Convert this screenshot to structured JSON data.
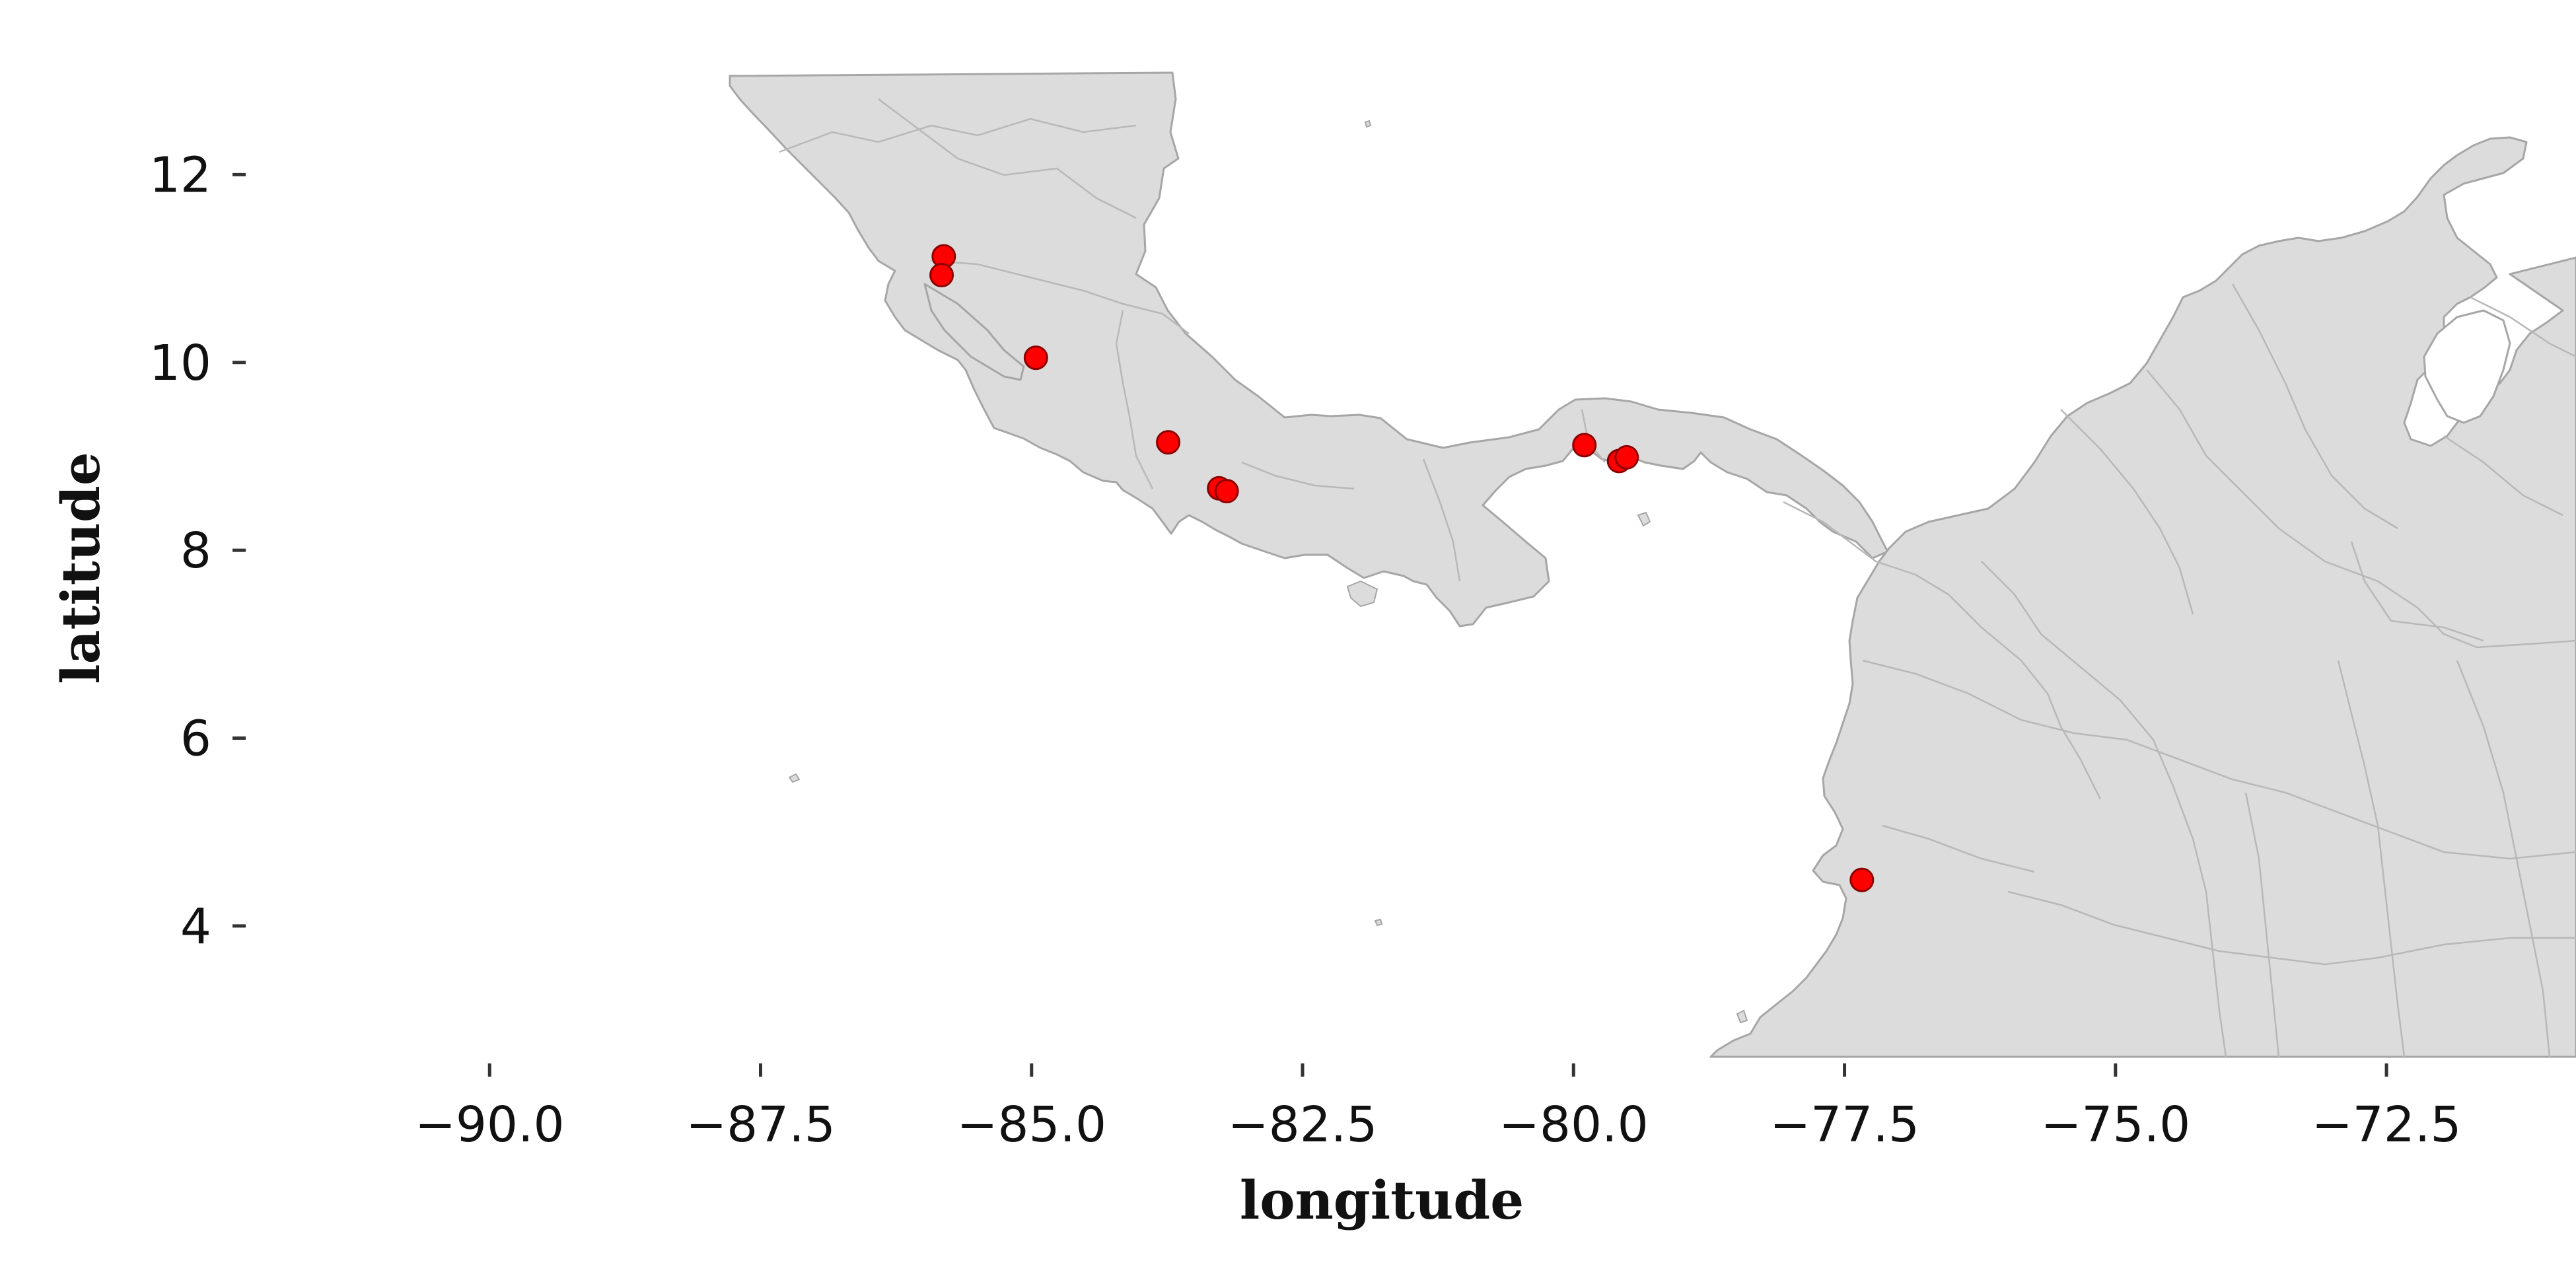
{
  "chart_data": {
    "type": "scatter",
    "xlabel": "longitude",
    "ylabel": "latitude",
    "xlim": [
      -92.25,
      -71.3
    ],
    "ylim": [
      2.55,
      13.1
    ],
    "xticks": [
      -90.0,
      -87.5,
      -85.0,
      -82.5,
      -80.0,
      -77.5,
      -75.0,
      -72.5
    ],
    "xtick_labels": [
      "−90.0",
      "−87.5",
      "−85.0",
      "−82.5",
      "−80.0",
      "−77.5",
      "−75.0",
      "−72.5"
    ],
    "yticks": [
      4,
      6,
      8,
      10,
      12
    ],
    "ytick_labels": [
      "4",
      "6",
      "8",
      "10",
      "12"
    ],
    "grid": false,
    "basemap": "country and province boundaries (Central America, Colombia, Venezuela)",
    "colors": {
      "land": "#dcdcdc",
      "boundary": "#a6a6a6",
      "point_fill": "#ff0000",
      "point_edge": "#8b0000"
    },
    "series": [
      {
        "points": [
          {
            "lon": -85.81,
            "lat": 11.13
          },
          {
            "lon": -85.83,
            "lat": 10.93
          },
          {
            "lon": -84.96,
            "lat": 10.05
          },
          {
            "lon": -83.74,
            "lat": 9.15
          },
          {
            "lon": -83.27,
            "lat": 8.66
          },
          {
            "lon": -83.2,
            "lat": 8.63
          },
          {
            "lon": -79.9,
            "lat": 9.12
          },
          {
            "lon": -79.58,
            "lat": 8.95
          },
          {
            "lon": -79.51,
            "lat": 8.99
          },
          {
            "lon": -77.34,
            "lat": 4.49
          }
        ]
      }
    ]
  }
}
